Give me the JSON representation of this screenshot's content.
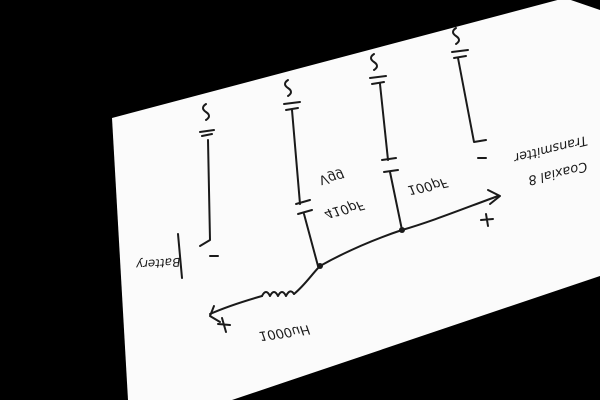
{
  "labels": {
    "top_label": "Coaxial 8",
    "top_label_2": "Transmitter",
    "cap1": "100pF",
    "cap2": "410pF",
    "cap2_sub": "Vgg",
    "inductor": "1000uH",
    "left_label": "Battery"
  },
  "colors": {
    "background": "#000000",
    "paper": "#fbfbfb",
    "ink": "#1a1a1a"
  }
}
